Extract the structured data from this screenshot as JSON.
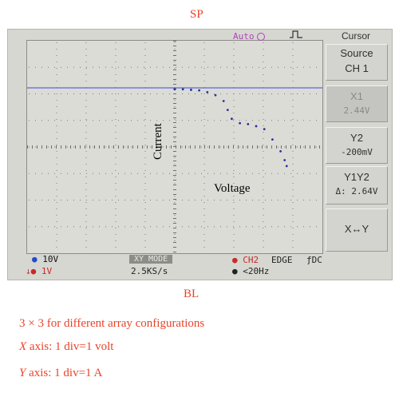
{
  "labels": {
    "sp": "SP",
    "bl": "BL",
    "current": "Current",
    "voltage": "Voltage"
  },
  "scope": {
    "status_top": {
      "auto": "Auto",
      "menu_title": "Cursor"
    },
    "menu": {
      "source_label": "Source",
      "source_value": "CH 1",
      "x1_label": "X1",
      "x1_value": "2.44V",
      "y2_label": "Y2",
      "y2_value": "-200mV",
      "y1y2_label": "Y1Y2",
      "y1y2_value": "Δ: 2.64V",
      "xy_label": "X↔Y"
    },
    "status_bottom": {
      "ch1_scale": "10V",
      "ch2_scale": "1V",
      "xy_mode": "XY MODE",
      "sample_rate": "2.5KS/s",
      "trig_channel": "CH2",
      "trig_edge": "EDGE",
      "coupling": "DC",
      "trig_freq": "<20Hz"
    },
    "colors": {
      "trace": "#2b2f9c",
      "marker": "#6f7bd9",
      "text_red": "#e8432a"
    }
  },
  "captions": {
    "line1": "3 × 3 for different array configurations",
    "line2_var": "X",
    "line2_rest": " axis: 1 div=1 volt",
    "line3_var": "Y",
    "line3_rest": " axis: 1 div=1 A"
  },
  "chart_data": {
    "type": "scatter",
    "title": "",
    "xlabel": "Voltage",
    "ylabel": "Current",
    "series": [
      {
        "values": [
          [
            0.0,
            2.9
          ],
          [
            0.2,
            2.9
          ],
          [
            0.4,
            2.88
          ],
          [
            0.6,
            2.86
          ],
          [
            0.8,
            2.8
          ],
          [
            1.0,
            2.7
          ],
          [
            1.2,
            2.5
          ],
          [
            1.3,
            2.2
          ],
          [
            1.4,
            1.9
          ],
          [
            1.6,
            1.75
          ],
          [
            1.8,
            1.72
          ],
          [
            2.0,
            1.65
          ],
          [
            2.2,
            1.55
          ],
          [
            2.4,
            1.2
          ],
          [
            2.6,
            0.8
          ],
          [
            2.7,
            0.5
          ],
          [
            2.75,
            0.3
          ]
        ]
      }
    ]
  }
}
